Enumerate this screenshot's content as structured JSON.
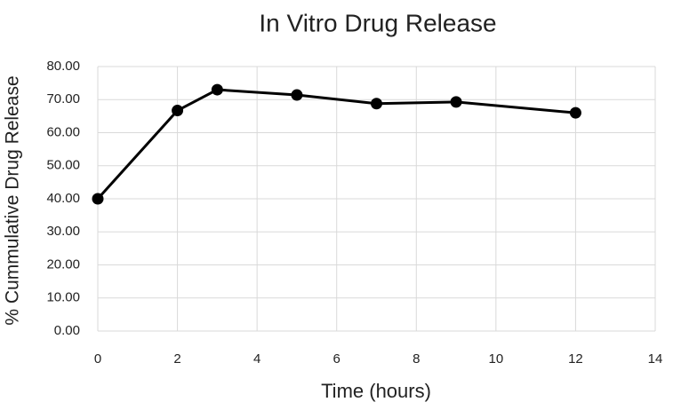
{
  "chart_data": {
    "type": "line",
    "title": "In Vitro Drug Release",
    "x_label": "Time (hours)",
    "y_label": "% Cummulative Drug Release",
    "x": [
      0,
      2,
      3,
      5,
      7,
      9,
      12
    ],
    "series": [
      {
        "name": "% Cummulative Drug Release",
        "color": "#000000",
        "values": [
          40.0,
          66.7,
          73.0,
          71.4,
          68.8,
          69.3,
          66.0
        ]
      }
    ],
    "xlim": [
      0,
      14
    ],
    "xticks": [
      0,
      2,
      4,
      6,
      8,
      10,
      12,
      14
    ],
    "ylim": [
      0,
      80
    ],
    "yticks": [
      {
        "value": 0,
        "label": "0.00"
      },
      {
        "value": 10,
        "label": "10.00"
      },
      {
        "value": 20,
        "label": "20.00"
      },
      {
        "value": 30,
        "label": "30.00"
      },
      {
        "value": 40,
        "label": "40.00"
      },
      {
        "value": 50,
        "label": "50.00"
      },
      {
        "value": 60,
        "label": "60.00"
      },
      {
        "value": 70,
        "label": "70.00"
      },
      {
        "value": 80,
        "label": "80.00"
      }
    ],
    "grid": true
  }
}
